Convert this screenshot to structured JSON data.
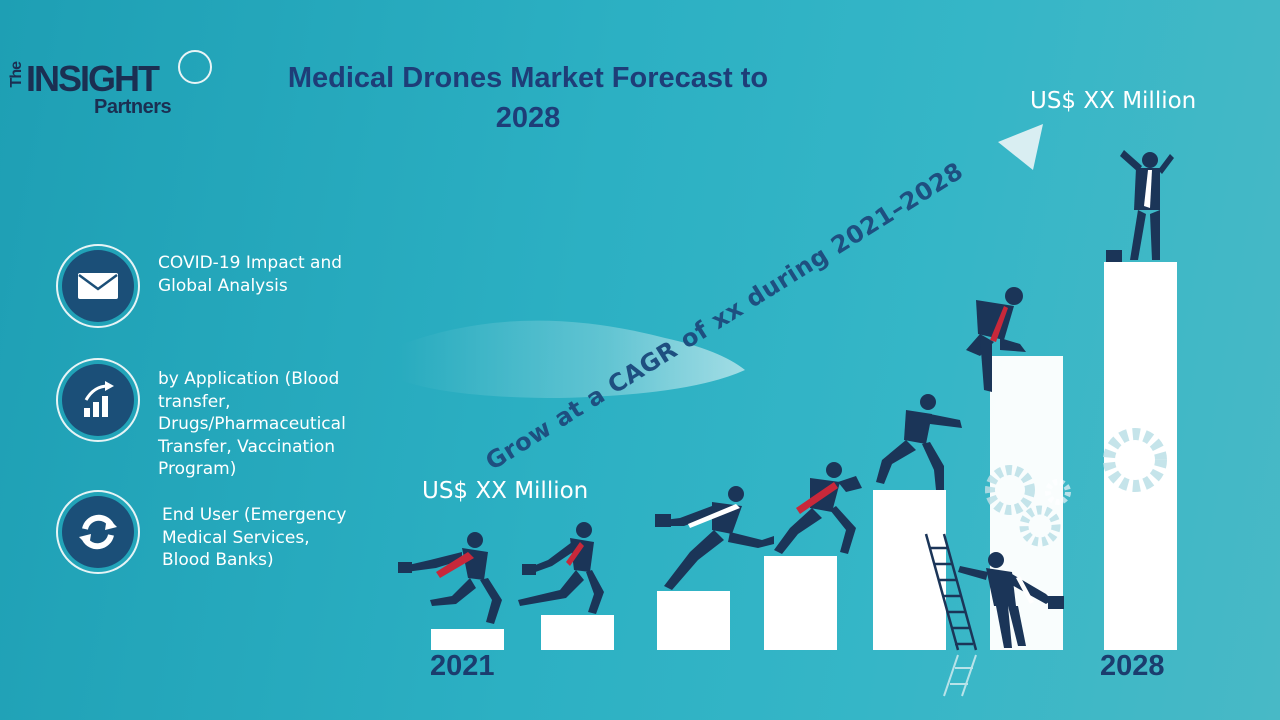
{
  "logo": {
    "the": "The",
    "insight": "INSIGHT",
    "partners": "Partners"
  },
  "title": "Medical Drones Market Forecast to 2028",
  "features": [
    {
      "icon": "envelope-icon",
      "text": "COVID-19 Impact and Global Analysis"
    },
    {
      "icon": "growth-chart-icon",
      "text": "by Application (Blood transfer, Drugs/Pharmaceutical Transfer, Vaccination Program)"
    },
    {
      "icon": "recycle-arrows-icon",
      "text": "End User (Emergency Medical Services, Blood Banks)"
    }
  ],
  "start_value_label": "US$ XX Million",
  "end_value_label": "US$ XX Million",
  "cagr_text": "Grow at a CAGR of xx during 2021–2028",
  "start_year": "2021",
  "end_year": "2028",
  "colors": {
    "accent_dark": "#1e3d78",
    "figure": "#1b3558",
    "tie": "#c8283a",
    "bar": "#ffffff"
  }
}
